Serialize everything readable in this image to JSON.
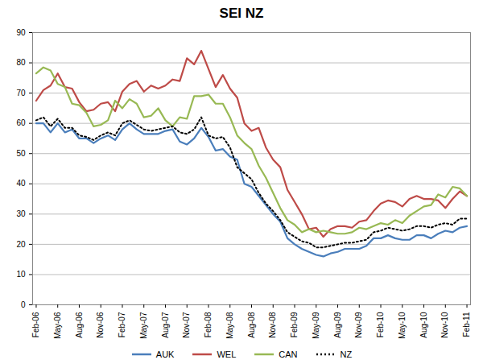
{
  "chart_data": {
    "type": "line",
    "title": "SEI NZ",
    "categories": [
      "Feb-06",
      null,
      null,
      "May-06",
      null,
      null,
      "Aug-06",
      null,
      null,
      "Nov-06",
      null,
      null,
      "Feb-07",
      null,
      null,
      "May-07",
      null,
      null,
      "Aug-07",
      null,
      null,
      "Nov-07",
      null,
      null,
      "Feb-08",
      null,
      null,
      "May-08",
      null,
      null,
      "Aug-08",
      null,
      null,
      "Nov-08",
      null,
      null,
      "Feb-09",
      null,
      null,
      "May-09",
      null,
      null,
      "Aug-09",
      null,
      null,
      "Nov-09",
      null,
      null,
      "Feb-10",
      null,
      null,
      "May-10",
      null,
      null,
      "Aug-10",
      null,
      null,
      "Nov-10",
      null,
      null,
      "Feb-11"
    ],
    "series": [
      {
        "name": "AUK",
        "color": "#4a7ebb",
        "line_style": "solid",
        "values": [
          60,
          60,
          57,
          60,
          57,
          58,
          55,
          55,
          53.5,
          55,
          56,
          54.5,
          58,
          60,
          58,
          56.5,
          56.5,
          56.5,
          57.5,
          58,
          54,
          53,
          55,
          58.5,
          55.5,
          51,
          51.5,
          49,
          48,
          40,
          39,
          36,
          33,
          30,
          27.5,
          22,
          20,
          18.5,
          17.5,
          16.5,
          16,
          17,
          17.5,
          18.5,
          18.5,
          18.5,
          19.5,
          22,
          22,
          23,
          22,
          21.5,
          21.5,
          23,
          23,
          22,
          23.5,
          24.5,
          24,
          25.5,
          26
        ]
      },
      {
        "name": "WEL",
        "color": "#be4b48",
        "line_style": "solid",
        "values": [
          67.5,
          71,
          72.5,
          76.5,
          72,
          71.5,
          67,
          64,
          64.5,
          66.5,
          67,
          64,
          70.5,
          73,
          74,
          70.5,
          72.5,
          71.5,
          72.5,
          74.5,
          74,
          81.5,
          79.5,
          84,
          78,
          72,
          76,
          71.5,
          68.5,
          60,
          57.5,
          58.5,
          52,
          48,
          45.5,
          38,
          34,
          30,
          25,
          25.5,
          22.5,
          25,
          26,
          26,
          25.5,
          27.5,
          28,
          31,
          33.5,
          34.5,
          34,
          32.5,
          35,
          36,
          35,
          35,
          34.5,
          32,
          35,
          37.5,
          36
        ]
      },
      {
        "name": "CAN",
        "color": "#98b954",
        "line_style": "solid",
        "values": [
          76.5,
          78.5,
          77.5,
          73,
          72,
          66.5,
          66,
          63.5,
          59,
          59.5,
          61,
          67.5,
          65,
          68,
          66.5,
          62,
          62.5,
          65,
          61,
          59,
          62,
          61.5,
          69,
          69,
          69.5,
          66.5,
          66.5,
          62,
          56,
          53.5,
          51.5,
          46,
          42,
          37,
          32,
          28,
          26.5,
          24,
          25,
          24,
          24.5,
          24,
          23.5,
          23.5,
          24,
          25.5,
          25,
          26,
          27,
          26.5,
          28,
          27,
          29.5,
          31,
          32.5,
          33,
          36.5,
          35.5,
          39,
          38.5,
          36
        ]
      },
      {
        "name": "NZ",
        "color": "#000000",
        "line_style": "dotted",
        "values": [
          61,
          62,
          59,
          61.5,
          58.5,
          58.5,
          56,
          55.5,
          54.5,
          56,
          57,
          56,
          60,
          61,
          59.5,
          58,
          57.5,
          58,
          58.5,
          59,
          57,
          56.5,
          58,
          62,
          56,
          55,
          55.5,
          52,
          45.5,
          43.5,
          41.5,
          37,
          33.5,
          31,
          28,
          24,
          22.5,
          21,
          20.5,
          19,
          19,
          19.5,
          20,
          20.5,
          20.5,
          21,
          21.5,
          24,
          24.5,
          25.5,
          25,
          24.5,
          25,
          26,
          26,
          25.5,
          26.5,
          27,
          26.5,
          28.5,
          28.5
        ]
      }
    ],
    "ylim": [
      0,
      90
    ],
    "yticks": [
      0,
      10,
      20,
      30,
      40,
      50,
      60,
      70,
      80,
      90
    ],
    "grid": true,
    "legend": "bottom"
  }
}
